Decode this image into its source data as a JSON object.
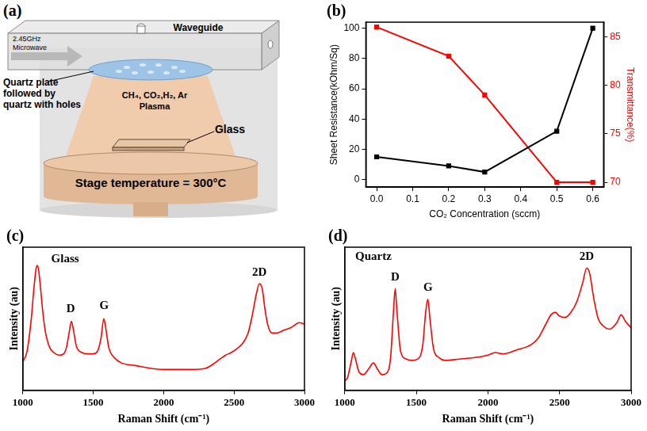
{
  "diagram": {
    "panel": "(a)",
    "source": [
      "2.45GHz",
      "Microwave"
    ],
    "waveguide": "Waveguide",
    "window": [
      "Quartz plate",
      "followed by",
      "quartz with holes"
    ],
    "plasma": [
      "CH₄, CO₂,H₂, Ar",
      "Plasma"
    ],
    "substrate": "Glass",
    "stage": "Stage temperature = 300°C"
  },
  "chart_data": [
    {
      "panel": "(b)",
      "type": "line",
      "xlabel": "CO₂ Concentration (sccm)",
      "ylabel": "Sheet Resistance(kOhm/Sq)",
      "y2label": "Transmittance(%)",
      "x": [
        0,
        0.2,
        0.3,
        0.5,
        0.6
      ],
      "xlim": [
        -0.03,
        0.63
      ],
      "xticks": [
        {
          "value": 0,
          "label": "0.0"
        },
        0.1,
        0.2,
        0.3,
        0.4,
        0.5,
        0.6
      ],
      "ylim": [
        -5,
        104
      ],
      "yticks": [
        0,
        20,
        40,
        60,
        80,
        100
      ],
      "y2lim": [
        69.5,
        86.5
      ],
      "y2ticks": [
        70,
        75,
        80,
        85
      ],
      "grid": false,
      "series": [
        {
          "color": "#000000",
          "marker": "square",
          "line_style": "solid",
          "values": [
            15,
            9,
            5,
            32,
            100
          ]
        },
        {
          "color": "#ff0000",
          "marker": "square",
          "line_style": "solid",
          "axis": "y2",
          "values": [
            86,
            83,
            79,
            70,
            70
          ]
        }
      ]
    },
    {
      "panel": "(c)",
      "type": "line",
      "xlabel": "Raman Shift (cm⁻¹)",
      "ylabel": "Intensity (au)",
      "color": "#ff0000",
      "x": [
        1000,
        1030,
        1060,
        1080,
        1095,
        1105,
        1120,
        1140,
        1160,
        1190,
        1220,
        1260,
        1290,
        1310,
        1330,
        1345,
        1360,
        1380,
        1420,
        1460,
        1500,
        1530,
        1555,
        1575,
        1590,
        1610,
        1650,
        1700,
        1800,
        1900,
        2000,
        2100,
        2200,
        2300,
        2350,
        2400,
        2440,
        2480,
        2520,
        2560,
        2600,
        2630,
        2660,
        2680,
        2700,
        2720,
        2740,
        2770,
        2800,
        2850,
        2900,
        2930,
        2960,
        3000
      ],
      "values": [
        22,
        30,
        55,
        80,
        94,
        96,
        85,
        62,
        45,
        33,
        29,
        27,
        28,
        33,
        45,
        53,
        46,
        34,
        29,
        28,
        28,
        30,
        40,
        55,
        47,
        33,
        25,
        21,
        19,
        17,
        16,
        16,
        16,
        17,
        20,
        24,
        27,
        29,
        32,
        36,
        44,
        58,
        75,
        82,
        78,
        62,
        50,
        44,
        44,
        46,
        48,
        50,
        52,
        51
      ],
      "xlim": [
        1000,
        3000
      ],
      "xticks": [
        1000,
        1500,
        2000,
        2500,
        3000
      ],
      "ylim": [
        0,
        110
      ],
      "tick_labels": "x",
      "grid": false,
      "annotations": [
        {
          "text": "Glass",
          "x": 1300,
          "y": 96
        },
        {
          "text": "D",
          "x": 1340,
          "y": 58
        },
        {
          "text": "G",
          "x": 1578,
          "y": 60
        },
        {
          "text": "2D",
          "x": 2680,
          "y": 86
        }
      ]
    },
    {
      "panel": "(d)",
      "type": "line",
      "xlabel": "Raman Shift (cm⁻¹)",
      "ylabel": "Intensity (au)",
      "color": "#ff0000",
      "x": [
        1000,
        1020,
        1045,
        1060,
        1075,
        1100,
        1130,
        1170,
        1200,
        1230,
        1260,
        1290,
        1320,
        1340,
        1352,
        1365,
        1390,
        1430,
        1470,
        1510,
        1545,
        1565,
        1580,
        1595,
        1620,
        1660,
        1700,
        1800,
        1900,
        2000,
        2050,
        2100,
        2200,
        2300,
        2350,
        2400,
        2440,
        2470,
        2500,
        2540,
        2580,
        2620,
        2660,
        2690,
        2710,
        2740,
        2770,
        2800,
        2850,
        2900,
        2930,
        2960,
        3000
      ],
      "values": [
        7,
        10,
        22,
        29,
        24,
        14,
        12,
        17,
        21,
        16,
        12,
        13,
        25,
        60,
        78,
        60,
        30,
        24,
        23,
        24,
        35,
        60,
        70,
        55,
        32,
        25,
        23,
        24,
        25,
        27,
        29,
        28,
        31,
        35,
        40,
        50,
        58,
        60,
        57,
        56,
        60,
        68,
        82,
        94,
        90,
        70,
        55,
        50,
        47,
        52,
        58,
        53,
        48
      ],
      "xlim": [
        1000,
        3000
      ],
      "xticks": [
        1000,
        1500,
        2000,
        2500,
        3000
      ],
      "ylim": [
        0,
        110
      ],
      "tick_labels": "x",
      "grid": false,
      "annotations": [
        {
          "text": "Quartz",
          "x": 1200,
          "y": 98
        },
        {
          "text": "D",
          "x": 1352,
          "y": 82
        },
        {
          "text": "G",
          "x": 1582,
          "y": 74
        },
        {
          "text": "2D",
          "x": 2690,
          "y": 98
        }
      ]
    }
  ]
}
